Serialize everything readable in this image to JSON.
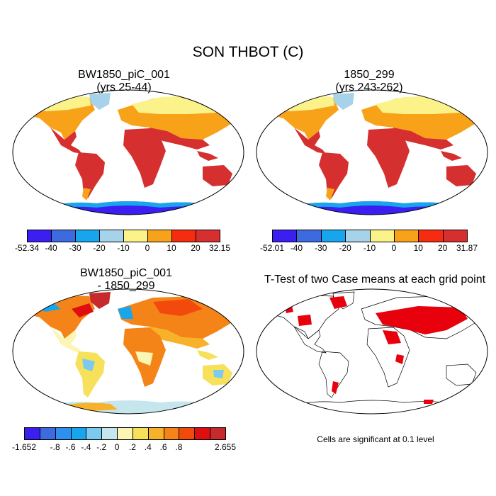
{
  "chart_data": [
    {
      "type": "heatmap",
      "panel": "top-left",
      "title_line1": "BW1850_piC_001",
      "title_line2": "(yrs 25-44)",
      "variable": "SON THBOT (C)",
      "colorbar": {
        "colors": [
          "#3b1ff0",
          "#3e6ae0",
          "#17a6ee",
          "#a7d3ea",
          "#fbf38a",
          "#f8a21a",
          "#f52c10",
          "#d62f2f"
        ],
        "tick_labels": [
          "-52.34",
          "-40",
          "-30",
          "-20",
          "-10",
          "0",
          "10",
          "20",
          "32.15"
        ],
        "min": -52.34,
        "max": 32.15
      }
    },
    {
      "type": "heatmap",
      "panel": "top-right",
      "title_line1": "1850_299",
      "title_line2": "(yrs 243-262)",
      "variable": "SON THBOT (C)",
      "colorbar": {
        "colors": [
          "#3b1ff0",
          "#3e6ae0",
          "#17a6ee",
          "#a7d3ea",
          "#fbf38a",
          "#f8a21a",
          "#f52c10",
          "#d62f2f"
        ],
        "tick_labels": [
          "-52.01",
          "-40",
          "-30",
          "-20",
          "-10",
          "0",
          "10",
          "20",
          "31.87"
        ],
        "min": -52.01,
        "max": 31.87
      }
    },
    {
      "type": "heatmap",
      "panel": "bottom-left",
      "title_line1": "BW1850_piC_001",
      "title_line2": "- 1850_299",
      "variable": "difference",
      "colorbar": {
        "colors": [
          "#3b1ff0",
          "#3e6ae0",
          "#2f8ff0",
          "#17a6ee",
          "#7ccaf0",
          "#c6e6ee",
          "#fbf6b4",
          "#f7e05a",
          "#f8b22a",
          "#f58418",
          "#f24a0c",
          "#e00f0f",
          "#c72a2a"
        ],
        "tick_labels": [
          "-1.652",
          "-.8",
          "-.6",
          "-.4",
          "-.2",
          "0",
          ".2",
          ".4",
          ".6",
          ".8",
          "2.655"
        ],
        "min": -1.652,
        "max": 2.655
      }
    },
    {
      "type": "heatmap",
      "panel": "bottom-right",
      "title": "T-Test of two Case means at each grid point",
      "significance_level": 0.1,
      "significant_color": "#e8000d"
    }
  ],
  "main_title": "SON THBOT (C)",
  "note": "Cells are significant at 0.1 level"
}
